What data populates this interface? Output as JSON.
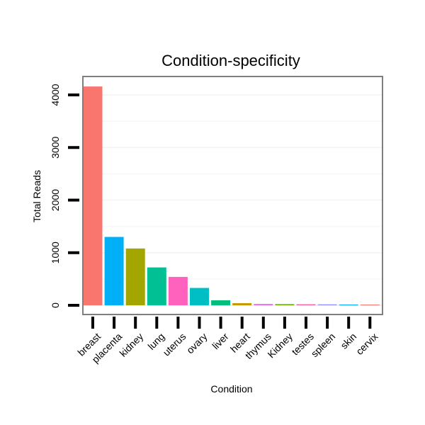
{
  "chart_data": {
    "type": "bar",
    "title": "Condition-specificity",
    "xlabel": "Condition",
    "ylabel": "Total Reads",
    "categories": [
      "breast",
      "placenta",
      "kidney",
      "lung",
      "uterus",
      "ovary",
      "liver",
      "heart",
      "thymus",
      "Kidney",
      "testes",
      "spleen",
      "skin",
      "cervix"
    ],
    "values": [
      4160,
      1300,
      1080,
      720,
      540,
      330,
      95,
      40,
      25,
      22,
      20,
      18,
      12,
      2
    ],
    "colors": [
      "#F8766D",
      "#00B0F6",
      "#A3A500",
      "#00C094",
      "#FF62BC",
      "#00BFC4",
      "#00BF7D",
      "#C49A00",
      "#E76BF3",
      "#6BB100",
      "#FF67A4",
      "#9590FF",
      "#00A9FF",
      "#F8766D"
    ],
    "yticks": [
      0,
      1000,
      2000,
      3000,
      4000
    ],
    "ylim": [
      0,
      4200
    ],
    "grid": true
  }
}
